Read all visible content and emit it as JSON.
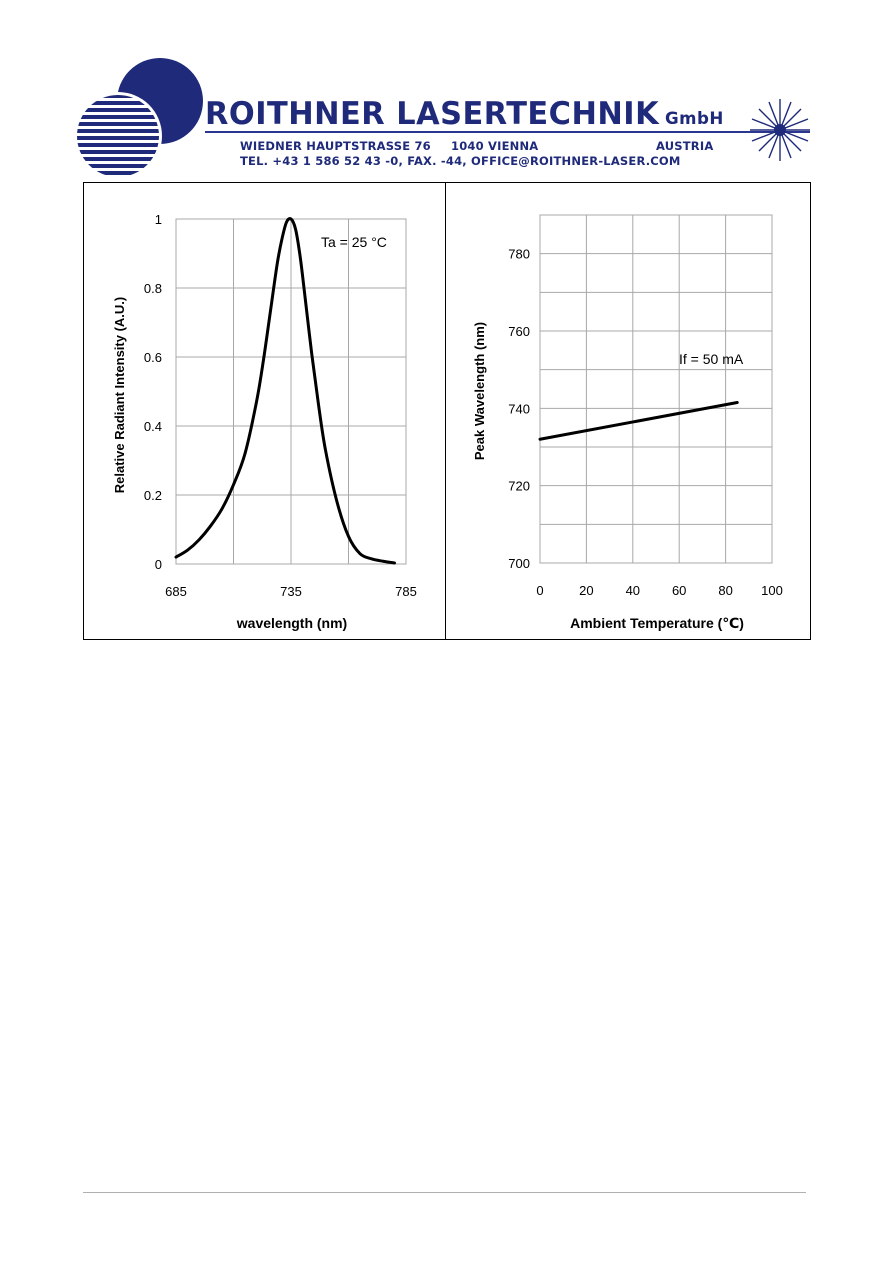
{
  "header": {
    "company_name": "ROITHNER LASERTECHNIK",
    "company_suffix": "GmbH",
    "address_street": "WIEDNER HAUPTSTRASSE 76",
    "address_city": "1040 VIENNA",
    "address_country": "AUSTRIA",
    "contact": "TEL. +43 1 586 52 43 -0, FAX. -44, OFFICE@ROITHNER-LASER.COM",
    "brand_color": "#1f2a7a"
  },
  "chart_data": [
    {
      "type": "line",
      "title": "",
      "xlabel": "wavelength (nm)",
      "ylabel": "Relative Radiant Intensity (A.U.)",
      "annotation": "Ta = 25 °C",
      "xlim": [
        685,
        785
      ],
      "ylim": [
        0,
        1
      ],
      "x_ticks": [
        "685",
        "735",
        "785"
      ],
      "y_ticks": [
        "0",
        "0.2",
        "0.4",
        "0.6",
        "0.8",
        "1"
      ],
      "grid": true,
      "legend": "none",
      "series": [
        {
          "x": [
            685,
            690,
            695,
            700,
            705,
            710,
            715,
            720,
            723,
            726,
            729,
            731,
            733,
            735,
            737,
            739,
            741,
            744,
            747,
            750,
            755,
            760,
            765,
            770,
            775,
            780
          ],
          "y": [
            0.02,
            0.04,
            0.07,
            0.11,
            0.16,
            0.23,
            0.32,
            0.47,
            0.59,
            0.73,
            0.87,
            0.94,
            0.99,
            1.0,
            0.97,
            0.89,
            0.78,
            0.61,
            0.46,
            0.33,
            0.18,
            0.08,
            0.03,
            0.015,
            0.008,
            0.003
          ]
        }
      ]
    },
    {
      "type": "line",
      "title": "",
      "xlabel": "Ambient Temperature (℃)",
      "ylabel": "Peak Wavelength (nm)",
      "annotation": "If = 50 mA",
      "xlim": [
        0,
        100
      ],
      "ylim": [
        700,
        790
      ],
      "x_ticks": [
        "0",
        "20",
        "40",
        "60",
        "80",
        "100"
      ],
      "y_ticks": [
        "700",
        "720",
        "740",
        "760",
        "780"
      ],
      "grid": true,
      "legend": "none",
      "series": [
        {
          "x": [
            0,
            85
          ],
          "y": [
            732,
            741.5
          ]
        }
      ]
    }
  ]
}
